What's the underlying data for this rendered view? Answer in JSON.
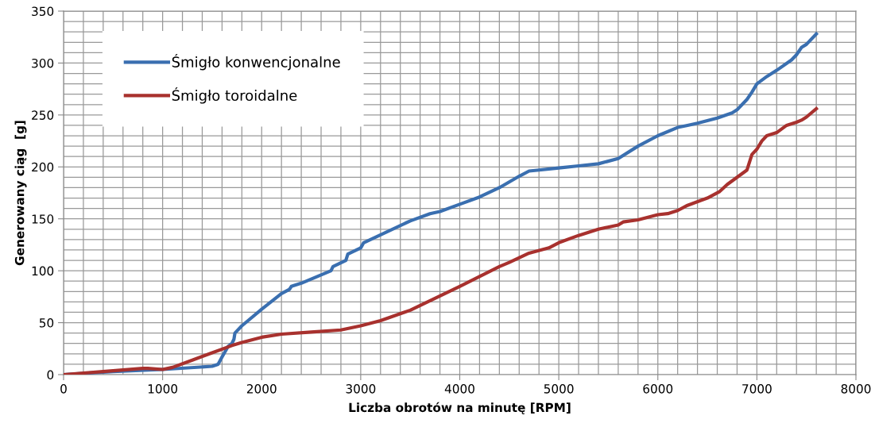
{
  "chart_data": {
    "type": "line",
    "xlabel": "Liczba obrotów na minutę [RPM]",
    "ylabel": "Generowany ciąg  [g]",
    "xlim": [
      0,
      8000
    ],
    "xticks": [
      0,
      1000,
      2000,
      3000,
      4000,
      5000,
      6000,
      7000,
      8000
    ],
    "ylim": [
      0,
      350
    ],
    "yticks": [
      0,
      50,
      100,
      150,
      200,
      250,
      300,
      350
    ],
    "grid": true,
    "legend": "top left",
    "marker": "none",
    "line_style": "solid",
    "series": [
      {
        "name": "Śmigło konwencjonalne",
        "color": "#3a6fb0",
        "x": [
          0,
          500,
          1000,
          1500,
          1560,
          1600,
          1630,
          1660,
          1700,
          1720,
          1730,
          1800,
          2000,
          2200,
          2280,
          2300,
          2400,
          2700,
          2720,
          2850,
          2870,
          3000,
          3030,
          3500,
          3700,
          3800,
          4000,
          4200,
          4400,
          4600,
          4700,
          4800,
          5000,
          5200,
          5400,
          5600,
          5800,
          6000,
          6200,
          6300,
          6400,
          6600,
          6750,
          6800,
          6900,
          6950,
          7000,
          7100,
          7200,
          7350,
          7400,
          7450,
          7500,
          7600
        ],
        "values": [
          0,
          3,
          5,
          8,
          10,
          17,
          22,
          27,
          30,
          34,
          40,
          47,
          63,
          78,
          82,
          85,
          88,
          100,
          104,
          110,
          116,
          122,
          127,
          148,
          155,
          157,
          164,
          171,
          180,
          191,
          196,
          197,
          199,
          201,
          203,
          208,
          220,
          230,
          238,
          240,
          242,
          247,
          252,
          255,
          265,
          272,
          280,
          287,
          293,
          303,
          308,
          315,
          318,
          328
        ]
      },
      {
        "name": "Śmigło toroidalne",
        "color": "#a8312e",
        "x": [
          0,
          400,
          800,
          850,
          1000,
          1100,
          1300,
          1500,
          1700,
          1800,
          2000,
          2200,
          2500,
          2800,
          3000,
          3200,
          3500,
          4000,
          4400,
          4500,
          4700,
          4900,
          5000,
          5200,
          5400,
          5600,
          5650,
          5800,
          6000,
          6100,
          6200,
          6300,
          6500,
          6620,
          6700,
          6900,
          6950,
          7000,
          7050,
          7100,
          7200,
          7300,
          7400,
          7450,
          7500,
          7600
        ],
        "values": [
          0,
          3,
          6,
          6,
          5,
          7,
          14,
          21,
          28,
          31,
          36,
          39,
          41,
          43,
          47,
          52,
          62,
          85,
          104,
          108,
          117,
          122,
          127,
          134,
          140,
          144,
          147,
          149,
          154,
          155,
          158,
          163,
          170,
          176,
          183,
          197,
          212,
          217,
          225,
          230,
          233,
          240,
          243,
          245,
          248,
          256
        ]
      }
    ]
  }
}
